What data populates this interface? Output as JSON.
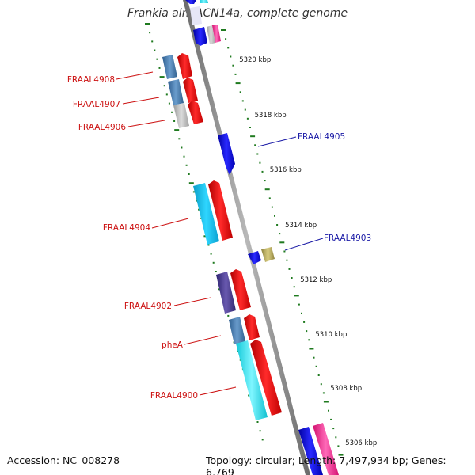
{
  "title": "Frankia alni ACN14a, complete genome",
  "footer": {
    "accession": "Accession: NC_008278",
    "stats": "Topology: circular; Length: 7,497,934 bp; Genes: 6,769"
  },
  "colors": {
    "backbone": "#8a8a8a",
    "ticks": "#1f7a1f",
    "forward_label": "#cc1111",
    "reverse_label": "#1a1aa6",
    "red": "#ff1f1f",
    "blue": "#1a1aff",
    "cyan": "#12c8f0",
    "steel": "#4a7fb0",
    "gray": "#c0c0c0",
    "purple": "#4b3d8c",
    "olive": "#b5a85a",
    "pink": "#ff3fa0",
    "lightcyan": "#6fe8f0"
  },
  "scale": {
    "unit": "kbp",
    "ticks": [
      {
        "label": "5320 kbp",
        "kbp": 5320
      },
      {
        "label": "5318 kbp",
        "kbp": 5318
      },
      {
        "label": "5316 kbp",
        "kbp": 5316
      },
      {
        "label": "5314 kbp",
        "kbp": 5314
      },
      {
        "label": "5312 kbp",
        "kbp": 5312
      },
      {
        "label": "5310 kbp",
        "kbp": 5310
      },
      {
        "label": "5308 kbp",
        "kbp": 5308
      },
      {
        "label": "5306 kbp",
        "kbp": 5306
      }
    ]
  },
  "forward_labels": [
    "FRAAL4908",
    "FRAAL4907",
    "FRAAL4906",
    "FRAAL4904",
    "FRAAL4902",
    "pheA",
    "FRAAL4900"
  ],
  "reverse_labels": [
    "FRAAL4905",
    "FRAAL4903"
  ]
}
